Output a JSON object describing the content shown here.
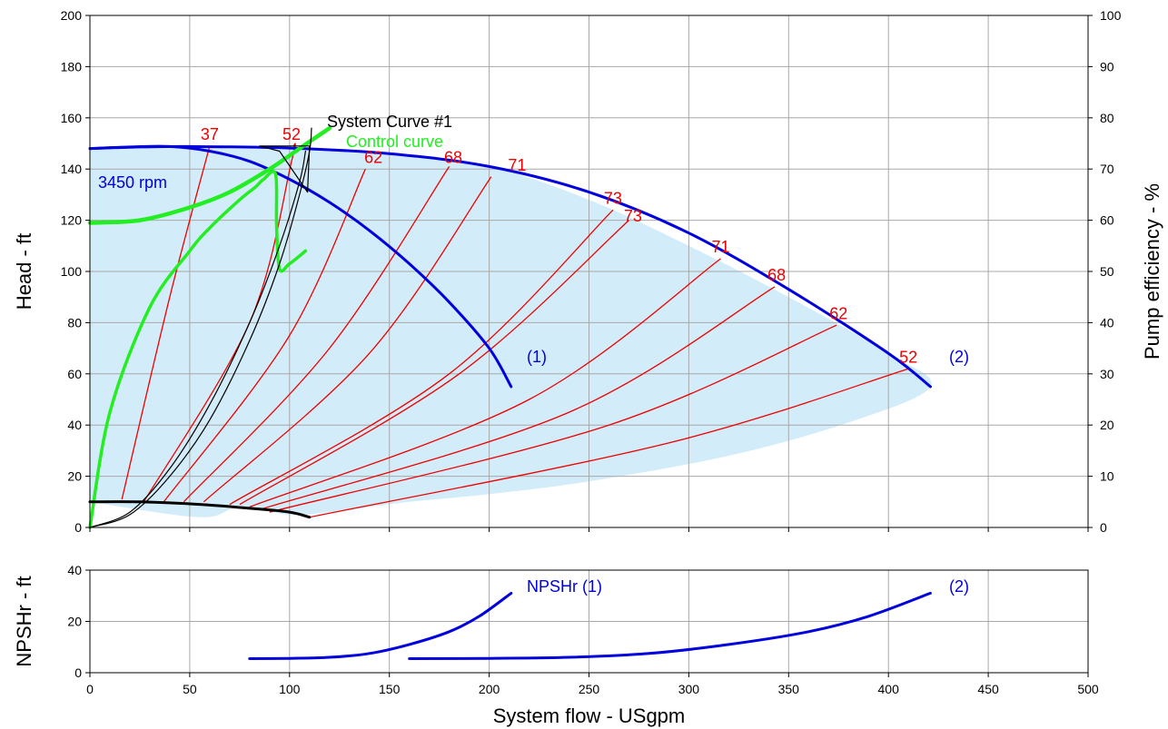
{
  "chart_data": [
    {
      "type": "line",
      "title": "",
      "xlabel": "System flow - USgpm",
      "ylabel": "Head - ft",
      "y2label": "Pump efficiency - %",
      "xlim": [
        0,
        500
      ],
      "ylim": [
        0,
        200
      ],
      "y2lim": [
        0,
        100
      ],
      "xticks": [
        0,
        50,
        100,
        150,
        200,
        250,
        300,
        350,
        400,
        450,
        500
      ],
      "yticks": [
        0,
        20,
        40,
        60,
        80,
        100,
        120,
        140,
        160,
        180,
        200
      ],
      "y2ticks": [
        0,
        10,
        20,
        30,
        40,
        50,
        60,
        70,
        80,
        90,
        100
      ],
      "grid": true,
      "colors": {
        "pump": "#0000dd",
        "efficiency": "#ee0000",
        "control": "#22ee22",
        "system": "#000000",
        "region": "#d2ecf9"
      },
      "annotations": {
        "speed": "3450 rpm",
        "pump1_tag": "(1)",
        "pump2_tag": "(2)",
        "system_curve": "System Curve #1",
        "control_curve": "Control curve"
      },
      "operating_region": [
        [
          0,
          148
        ],
        [
          25,
          148.6
        ],
        [
          50,
          148.8
        ],
        [
          100,
          148.2
        ],
        [
          150,
          146
        ],
        [
          200,
          141
        ],
        [
          250,
          128
        ],
        [
          300,
          110
        ],
        [
          350,
          90
        ],
        [
          400,
          68
        ],
        [
          421,
          55
        ],
        [
          380,
          41
        ],
        [
          320,
          28
        ],
        [
          250,
          18
        ],
        [
          200,
          13
        ],
        [
          160,
          10
        ],
        [
          120,
          6
        ],
        [
          100,
          5
        ],
        [
          75,
          8
        ],
        [
          55,
          4
        ],
        [
          0,
          10
        ]
      ],
      "series": [
        {
          "name": "Pump (1)",
          "kind": "pump",
          "points": [
            [
              0,
              148
            ],
            [
              20,
              148.6
            ],
            [
              40,
              148.8
            ],
            [
              60,
              147
            ],
            [
              80,
              143
            ],
            [
              100,
              136
            ],
            [
              120,
              127
            ],
            [
              140,
              116
            ],
            [
              160,
              103
            ],
            [
              180,
              88
            ],
            [
              200,
              70
            ],
            [
              211,
              55
            ]
          ]
        },
        {
          "name": "Pump (2)",
          "kind": "pump",
          "points": [
            [
              0,
              148
            ],
            [
              25,
              148.6
            ],
            [
              50,
              148.8
            ],
            [
              100,
              148.2
            ],
            [
              150,
              146
            ],
            [
              200,
              141
            ],
            [
              250,
              131
            ],
            [
              300,
              115
            ],
            [
              350,
              93
            ],
            [
              400,
              68
            ],
            [
              421,
              55
            ]
          ]
        },
        {
          "name": "Efficiency curves",
          "kind": "efficiency",
          "curves": [
            {
              "label": "37",
              "points": [
                [
                  16,
                  11
                ],
                [
                  40,
                  90
                ],
                [
                  60,
                  149
                ]
              ]
            },
            {
              "label": "52",
              "points": [
                [
                  27,
                  10
                ],
                [
                  80,
                  80
                ],
                [
                  101,
                  143
                ],
                [
                  102,
                  149
                ]
              ]
            },
            {
              "label": "62",
              "points": [
                [
                  37,
                  10
                ],
                [
                  100,
                  75
                ],
                [
                  138,
                  140
                ]
              ]
            },
            {
              "label": "68",
              "points": [
                [
                  47,
                  10
                ],
                [
                  120,
                  70
                ],
                [
                  180,
                  141
                ]
              ]
            },
            {
              "label": "71",
              "points": [
                [
                  57,
                  10
                ],
                [
                  140,
                  68
                ],
                [
                  201,
                  137
                ]
              ]
            },
            {
              "label": "73",
              "points": [
                [
                  70,
                  9
                ],
                [
                  180,
                  60
                ],
                [
                  262,
                  124
                ]
              ]
            },
            {
              "label": "73",
              "points": [
                [
                  75,
                  9
                ],
                [
                  185,
                  60
                ],
                [
                  270,
                  120
                ]
              ]
            },
            {
              "label": "71",
              "points": [
                [
                  80,
                  8
                ],
                [
                  220,
                  50
                ],
                [
                  316,
                  105
                ]
              ]
            },
            {
              "label": "68",
              "points": [
                [
                  85,
                  7
                ],
                [
                  240,
                  45
                ],
                [
                  343,
                  94
                ]
              ]
            },
            {
              "label": "62",
              "points": [
                [
                  90,
                  6
                ],
                [
                  260,
                  40
                ],
                [
                  374,
                  79
                ]
              ]
            },
            {
              "label": "52",
              "points": [
                [
                  110,
                  4
                ],
                [
                  290,
                  33
                ],
                [
                  410,
                  62
                ]
              ]
            }
          ]
        },
        {
          "name": "Control curve",
          "kind": "control",
          "points": [
            [
              0,
              0
            ],
            [
              10,
              45
            ],
            [
              30,
              86
            ],
            [
              50,
              108
            ],
            [
              60,
              117
            ],
            [
              75,
              128
            ],
            [
              83,
              133
            ],
            [
              87,
              136
            ],
            [
              93,
              138
            ],
            [
              93.5,
              118
            ],
            [
              95,
              101
            ],
            [
              100,
              103
            ],
            [
              108,
              108
            ]
          ]
        },
        {
          "name": "Control curve upper branch",
          "kind": "control_thick",
          "points": [
            [
              0,
              119
            ],
            [
              25,
              120
            ],
            [
              50,
              125
            ],
            [
              70,
              131
            ],
            [
              90,
              140
            ],
            [
              105,
              148
            ],
            [
              120,
              156
            ]
          ]
        },
        {
          "name": "System Curve #1",
          "kind": "system",
          "points": [
            [
              0,
              0
            ],
            [
              20,
              5
            ],
            [
              40,
              20
            ],
            [
              60,
              42
            ],
            [
              80,
              73
            ],
            [
              95,
              103
            ],
            [
              105,
              130
            ],
            [
              110,
              147
            ],
            [
              111,
              156
            ]
          ]
        },
        {
          "name": "System Curve #1 (inner)",
          "kind": "system",
          "points": [
            [
              0,
              0
            ],
            [
              20,
              6
            ],
            [
              40,
              23
            ],
            [
              60,
              48
            ],
            [
              80,
              80
            ],
            [
              95,
              110
            ],
            [
              105,
              135
            ],
            [
              108,
              147
            ]
          ]
        },
        {
          "name": "Shutoff line",
          "kind": "system_thick",
          "points": [
            [
              0,
              10
            ],
            [
              25,
              10
            ],
            [
              55,
              9
            ],
            [
              80,
              7.5
            ],
            [
              100,
              6
            ],
            [
              110,
              4
            ]
          ]
        },
        {
          "name": "Operating bracket",
          "kind": "system",
          "points": [
            [
              85,
              149
            ],
            [
              110,
              149
            ],
            [
              109,
              131
            ],
            [
              95,
              147
            ],
            [
              85,
              149
            ]
          ]
        }
      ],
      "efficiency_labels": [
        {
          "label": "37",
          "x": 60,
          "y": 150
        },
        {
          "label": "52",
          "x": 101,
          "y": 150
        },
        {
          "label": "62",
          "x": 142,
          "y": 141
        },
        {
          "label": "68",
          "x": 182,
          "y": 141
        },
        {
          "label": "71",
          "x": 214,
          "y": 138
        },
        {
          "label": "73",
          "x": 262,
          "y": 125
        },
        {
          "label": "73",
          "x": 272,
          "y": 118
        },
        {
          "label": "71",
          "x": 316,
          "y": 106
        },
        {
          "label": "68",
          "x": 344,
          "y": 95
        },
        {
          "label": "62",
          "x": 375,
          "y": 80
        },
        {
          "label": "52",
          "x": 410,
          "y": 63
        }
      ]
    },
    {
      "type": "line",
      "title": "",
      "xlabel": "System flow - USgpm",
      "ylabel": "NPSHr - ft",
      "xlim": [
        0,
        500
      ],
      "ylim": [
        0,
        40
      ],
      "xticks": [
        0,
        50,
        100,
        150,
        200,
        250,
        300,
        350,
        400,
        450,
        500
      ],
      "yticks": [
        0,
        20,
        40
      ],
      "grid": true,
      "annotations": {
        "npshr1": "NPSHr (1)",
        "npshr2": "(2)"
      },
      "series": [
        {
          "name": "NPSHr (1)",
          "points": [
            [
              80,
              5.5
            ],
            [
              100,
              5.6
            ],
            [
              120,
              6
            ],
            [
              140,
              7.5
            ],
            [
              160,
              11
            ],
            [
              180,
              16
            ],
            [
              195,
              22
            ],
            [
              211,
              31
            ]
          ]
        },
        {
          "name": "NPSHr (2)",
          "points": [
            [
              160,
              5.5
            ],
            [
              200,
              5.6
            ],
            [
              240,
              6
            ],
            [
              280,
              7.5
            ],
            [
              320,
              11
            ],
            [
              360,
              16
            ],
            [
              390,
              22
            ],
            [
              421,
              31
            ]
          ]
        }
      ]
    }
  ]
}
